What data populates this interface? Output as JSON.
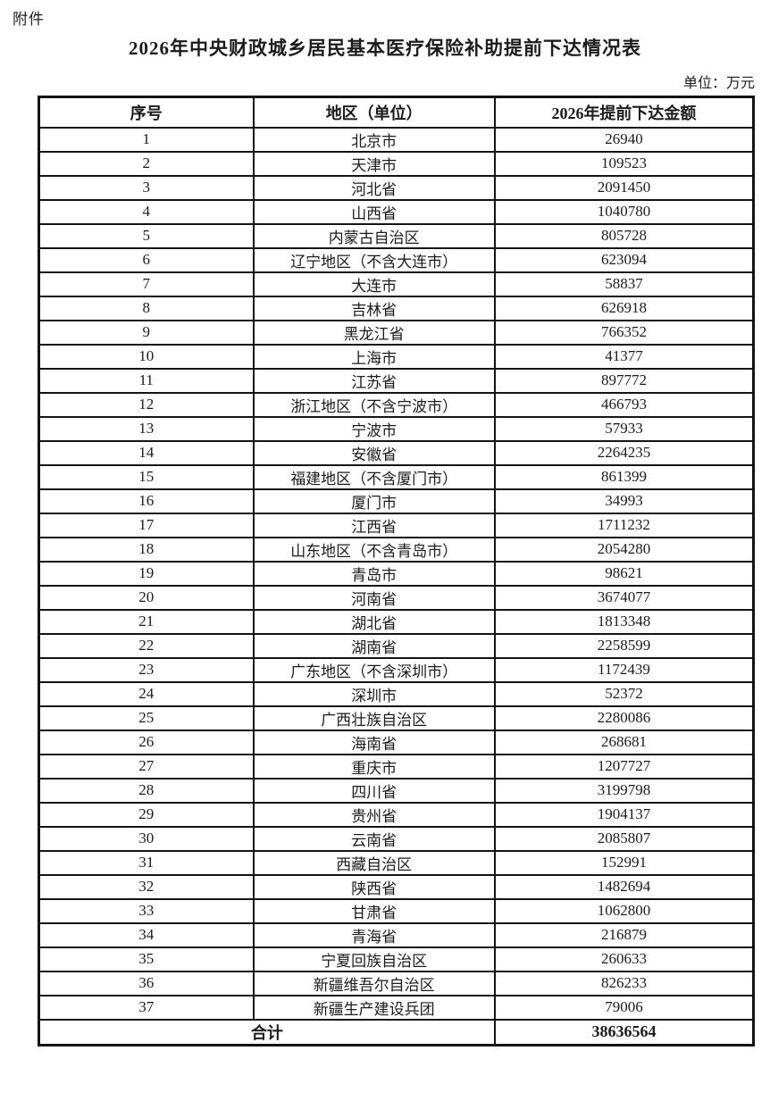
{
  "page": {
    "attachment_label": "附件",
    "title": "2026年中央财政城乡居民基本医疗保险补助提前下达情况表",
    "unit_note": "单位：万元"
  },
  "table": {
    "headers": {
      "index": "序号",
      "region": "地区（单位）",
      "amount": "2026年提前下达金额"
    },
    "rows": [
      {
        "no": "1",
        "region": "北京市",
        "amount": "26940"
      },
      {
        "no": "2",
        "region": "天津市",
        "amount": "109523"
      },
      {
        "no": "3",
        "region": "河北省",
        "amount": "2091450"
      },
      {
        "no": "4",
        "region": "山西省",
        "amount": "1040780"
      },
      {
        "no": "5",
        "region": "内蒙古自治区",
        "amount": "805728"
      },
      {
        "no": "6",
        "region": "辽宁地区（不含大连市）",
        "amount": "623094"
      },
      {
        "no": "7",
        "region": "大连市",
        "amount": "58837"
      },
      {
        "no": "8",
        "region": "吉林省",
        "amount": "626918"
      },
      {
        "no": "9",
        "region": "黑龙江省",
        "amount": "766352"
      },
      {
        "no": "10",
        "region": "上海市",
        "amount": "41377"
      },
      {
        "no": "11",
        "region": "江苏省",
        "amount": "897772"
      },
      {
        "no": "12",
        "region": "浙江地区（不含宁波市）",
        "amount": "466793"
      },
      {
        "no": "13",
        "region": "宁波市",
        "amount": "57933"
      },
      {
        "no": "14",
        "region": "安徽省",
        "amount": "2264235"
      },
      {
        "no": "15",
        "region": "福建地区（不含厦门市）",
        "amount": "861399"
      },
      {
        "no": "16",
        "region": "厦门市",
        "amount": "34993"
      },
      {
        "no": "17",
        "region": "江西省",
        "amount": "1711232"
      },
      {
        "no": "18",
        "region": "山东地区（不含青岛市）",
        "amount": "2054280"
      },
      {
        "no": "19",
        "region": "青岛市",
        "amount": "98621"
      },
      {
        "no": "20",
        "region": "河南省",
        "amount": "3674077"
      },
      {
        "no": "21",
        "region": "湖北省",
        "amount": "1813348"
      },
      {
        "no": "22",
        "region": "湖南省",
        "amount": "2258599"
      },
      {
        "no": "23",
        "region": "广东地区（不含深圳市）",
        "amount": "1172439"
      },
      {
        "no": "24",
        "region": "深圳市",
        "amount": "52372"
      },
      {
        "no": "25",
        "region": "广西壮族自治区",
        "amount": "2280086"
      },
      {
        "no": "26",
        "region": "海南省",
        "amount": "268681"
      },
      {
        "no": "27",
        "region": "重庆市",
        "amount": "1207727"
      },
      {
        "no": "28",
        "region": "四川省",
        "amount": "3199798"
      },
      {
        "no": "29",
        "region": "贵州省",
        "amount": "1904137"
      },
      {
        "no": "30",
        "region": "云南省",
        "amount": "2085807"
      },
      {
        "no": "31",
        "region": "西藏自治区",
        "amount": "152991"
      },
      {
        "no": "32",
        "region": "陕西省",
        "amount": "1482694"
      },
      {
        "no": "33",
        "region": "甘肃省",
        "amount": "1062800"
      },
      {
        "no": "34",
        "region": "青海省",
        "amount": "216879"
      },
      {
        "no": "35",
        "region": "宁夏回族自治区",
        "amount": "260633"
      },
      {
        "no": "36",
        "region": "新疆维吾尔自治区",
        "amount": "826233"
      },
      {
        "no": "37",
        "region": "新疆生产建设兵团",
        "amount": "79006"
      }
    ],
    "total": {
      "label": "合计",
      "amount": "38636564"
    }
  }
}
